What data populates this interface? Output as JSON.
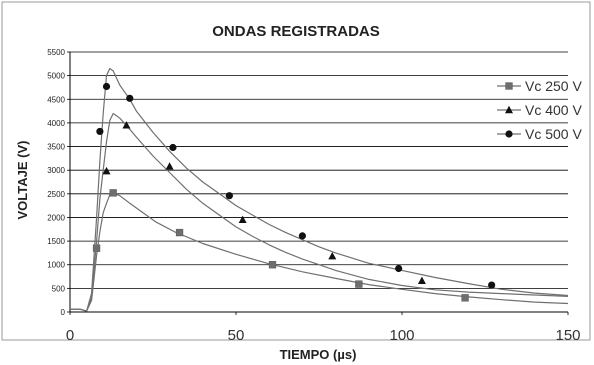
{
  "chart_data": {
    "type": "line",
    "title": "ONDAS REGISTRADAS",
    "xlabel": "TIEMPO (µs)",
    "ylabel": "VOLTAJE (V)",
    "xlim": [
      0,
      150
    ],
    "ylim": [
      0,
      5500
    ],
    "xticks": [
      "0",
      "50",
      "100",
      "150"
    ],
    "yticks": [
      "0",
      "500",
      "1000",
      "1500",
      "2000",
      "2500",
      "3000",
      "3500",
      "4000",
      "4500",
      "5000",
      "5500"
    ],
    "grid": "horizontal",
    "legend_position": "right",
    "series": [
      {
        "name": "Vc 250 V",
        "marker": "square",
        "x": [
          0,
          3,
          5,
          6.5,
          8,
          9,
          10,
          11,
          12,
          13,
          15,
          18,
          22,
          26,
          32,
          40,
          50,
          60,
          70,
          80,
          90,
          100,
          110,
          120,
          130,
          140,
          150
        ],
        "y": [
          60,
          60,
          20,
          250,
          1200,
          1700,
          2100,
          2300,
          2480,
          2520,
          2460,
          2300,
          2100,
          1900,
          1680,
          1450,
          1220,
          1020,
          850,
          710,
          580,
          480,
          390,
          320,
          260,
          210,
          180
        ],
        "marker_x": [
          8,
          13,
          33,
          61,
          87,
          119
        ],
        "marker_y": [
          1350,
          2520,
          1680,
          1000,
          590,
          300
        ]
      },
      {
        "name": "Vc 400 V",
        "marker": "triangle",
        "x": [
          0,
          3,
          5,
          6.5,
          8,
          9,
          10,
          11,
          12,
          13,
          14,
          15,
          17,
          20,
          25,
          30,
          35,
          40,
          45,
          50,
          55,
          60,
          65,
          70,
          75,
          80,
          90,
          100,
          110,
          120,
          130,
          140,
          150
        ],
        "y": [
          60,
          60,
          20,
          300,
          1500,
          2400,
          3000,
          3600,
          4050,
          4200,
          4150,
          4100,
          3950,
          3700,
          3300,
          2950,
          2600,
          2300,
          2050,
          1800,
          1600,
          1420,
          1260,
          1120,
          1000,
          880,
          690,
          560,
          470,
          420,
          390,
          360,
          330
        ],
        "marker_x": [
          11,
          17,
          30,
          52,
          79,
          106
        ],
        "marker_y": [
          2980,
          3950,
          3080,
          1950,
          1180,
          660
        ]
      },
      {
        "name": "Vc 500 V",
        "marker": "circle",
        "x": [
          0,
          3,
          5,
          6.5,
          8,
          9,
          10,
          11,
          12,
          13,
          14,
          15,
          16,
          18,
          20,
          25,
          30,
          35,
          40,
          45,
          50,
          55,
          60,
          65,
          70,
          75,
          80,
          90,
          100,
          110,
          120,
          130,
          140,
          150
        ],
        "y": [
          60,
          60,
          20,
          400,
          2000,
          3200,
          4200,
          5000,
          5150,
          5100,
          4950,
          4800,
          4700,
          4500,
          4250,
          3800,
          3400,
          3050,
          2750,
          2500,
          2250,
          2050,
          1850,
          1680,
          1530,
          1380,
          1250,
          1030,
          880,
          730,
          600,
          480,
          400,
          350
        ],
        "marker_x": [
          9,
          11,
          18,
          31,
          48,
          70,
          99,
          127
        ],
        "marker_y": [
          3820,
          4770,
          4520,
          3480,
          2460,
          1610,
          920,
          570
        ]
      }
    ]
  }
}
